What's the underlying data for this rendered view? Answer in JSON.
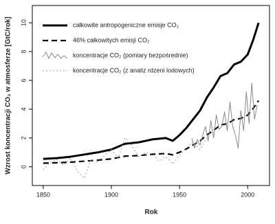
{
  "chart_data": {
    "type": "line",
    "xlabel": "Rok",
    "ylabel": "Wzrost koncentracji CO₂ w atmosferze [GtC/rok]",
    "xlim": [
      1842,
      2016
    ],
    "ylim": [
      -1.3,
      11.2
    ],
    "xticks": [
      1850,
      1900,
      1950,
      2000
    ],
    "yticks": [
      0,
      2,
      4,
      6,
      8,
      10
    ],
    "legend": "upper-left",
    "series": [
      {
        "name": "całkowite antropogeniczne emisje CO₂",
        "color": "#000000",
        "dash": "solid",
        "width": 3,
        "x": [
          1850,
          1860,
          1870,
          1880,
          1890,
          1900,
          1910,
          1920,
          1930,
          1940,
          1945,
          1950,
          1955,
          1960,
          1965,
          1970,
          1975,
          1980,
          1985,
          1990,
          1995,
          2000,
          2004,
          2008
        ],
        "values": [
          0.55,
          0.6,
          0.7,
          0.85,
          1.0,
          1.2,
          1.6,
          1.7,
          1.9,
          2.0,
          1.8,
          2.2,
          2.7,
          3.3,
          3.9,
          4.8,
          5.5,
          6.3,
          6.5,
          7.1,
          7.3,
          7.8,
          8.8,
          10.0
        ]
      },
      {
        "name": "46% całkowitych emisji CO₂",
        "color": "#000000",
        "dash": "dashed",
        "width": 2.2,
        "x": [
          1850,
          1860,
          1870,
          1880,
          1890,
          1900,
          1910,
          1920,
          1930,
          1940,
          1945,
          1950,
          1955,
          1960,
          1965,
          1970,
          1975,
          1980,
          1985,
          1990,
          1995,
          2000,
          2004,
          2008
        ],
        "values": [
          0.25,
          0.28,
          0.32,
          0.39,
          0.46,
          0.55,
          0.74,
          0.78,
          0.87,
          0.92,
          0.83,
          1.01,
          1.24,
          1.52,
          1.79,
          2.21,
          2.53,
          2.9,
          2.99,
          3.27,
          3.36,
          3.59,
          4.05,
          4.6
        ]
      },
      {
        "name": "koncentracje CO₂ (pomiary bezpośrednie)",
        "color": "#888888",
        "dash": "solid",
        "width": 1,
        "x": [
          1959,
          1961,
          1963,
          1965,
          1967,
          1969,
          1971,
          1973,
          1975,
          1977,
          1979,
          1981,
          1983,
          1985,
          1987,
          1989,
          1991,
          1993,
          1995,
          1997,
          1999,
          2001,
          2003,
          2005,
          2007
        ],
        "values": [
          2.0,
          1.3,
          1.9,
          1.5,
          2.2,
          2.8,
          1.8,
          3.2,
          2.0,
          3.6,
          2.6,
          2.8,
          3.8,
          2.5,
          4.5,
          2.8,
          2.2,
          1.3,
          3.9,
          2.5,
          5.2,
          3.0,
          5.8,
          3.3,
          4.3
        ]
      },
      {
        "name": "koncentracje CO₂ (z analiz rdzeni lodowych)",
        "color": "#aaaaaa",
        "dash": "dotted",
        "width": 1.2,
        "x": [
          1850,
          1855,
          1860,
          1865,
          1870,
          1875,
          1880,
          1885,
          1890,
          1895,
          1900,
          1905,
          1910,
          1915,
          1920,
          1925,
          1930,
          1935,
          1940,
          1945,
          1950,
          1955,
          1960,
          1965,
          1970
        ],
        "values": [
          -0.2,
          0.3,
          0.5,
          0.1,
          0.6,
          -0.3,
          -0.8,
          0.5,
          0.3,
          0.8,
          1.2,
          0.6,
          2.0,
          1.5,
          0.7,
          1.0,
          0.9,
          0.4,
          0.7,
          0.2,
          0.8,
          1.3,
          1.7,
          1.2,
          2.0
        ]
      }
    ]
  }
}
